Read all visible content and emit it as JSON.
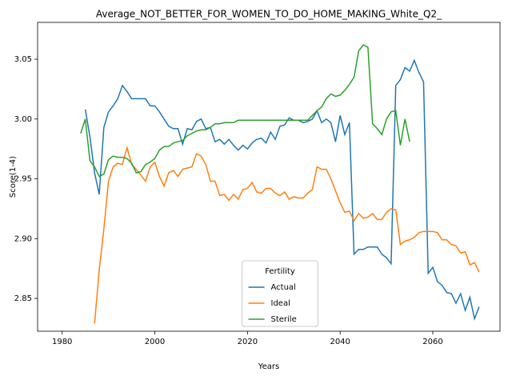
{
  "chart_data": {
    "type": "line",
    "title": "Average_NOT_BETTER_FOR_WOMEN_TO_DO_HOME_MAKING_White_Q2_",
    "x_label": "Years",
    "y_label": "Score(1-4)",
    "legend_title": "Fertility",
    "legend": "lower center",
    "grid": false,
    "xlim": [
      1974.7,
      2074.5
    ],
    "ylim": [
      2.8226,
      3.0808
    ],
    "xticks": [
      1980,
      2000,
      2020,
      2040,
      2060
    ],
    "yticks": [
      2.85,
      {
        "value": 2.9,
        "label": "2.90"
      },
      2.95,
      {
        "value": 3,
        "label": "3.00"
      },
      3.05
    ],
    "x": [
      1984,
      1985,
      1986,
      1987,
      1988,
      1989,
      1990,
      1991,
      1992,
      1993,
      1994,
      1995,
      1996,
      1997,
      1998,
      1999,
      2000,
      2001,
      2002,
      2003,
      2004,
      2005,
      2006,
      2007,
      2008,
      2009,
      2010,
      2011,
      2012,
      2013,
      2014,
      2015,
      2016,
      2017,
      2018,
      2019,
      2020,
      2021,
      2022,
      2023,
      2024,
      2025,
      2026,
      2027,
      2028,
      2029,
      2030,
      2031,
      2032,
      2033,
      2034,
      2035,
      2036,
      2037,
      2038,
      2039,
      2040,
      2041,
      2042,
      2043,
      2044,
      2045,
      2046,
      2047,
      2048,
      2049,
      2050,
      2051,
      2052,
      2053,
      2054,
      2055,
      2056,
      2057,
      2058,
      2059,
      2060,
      2061,
      2062,
      2063,
      2064,
      2065,
      2066,
      2067,
      2068,
      2069,
      2070
    ],
    "series": [
      {
        "name": "Actual",
        "color": "#1f77b4",
        "values": [
          null,
          3.008,
          2.985,
          2.955,
          2.937,
          2.993,
          3.006,
          3.011,
          3.017,
          3.028,
          3.023,
          3.017,
          3.017,
          3.017,
          3.017,
          3.011,
          3.011,
          3.006,
          3.0,
          2.994,
          2.992,
          2.992,
          2.979,
          2.992,
          2.991,
          2.998,
          3.0,
          2.992,
          2.993,
          2.981,
          2.983,
          2.979,
          2.983,
          2.978,
          2.974,
          2.978,
          2.975,
          2.98,
          2.983,
          2.984,
          2.98,
          2.989,
          2.983,
          2.994,
          2.995,
          3.001,
          2.999,
          2.999,
          2.997,
          2.998,
          3.0,
          3.007,
          2.997,
          3.0,
          2.997,
          2.981,
          3.003,
          2.987,
          2.997,
          2.887,
          2.891,
          2.891,
          2.893,
          2.893,
          2.893,
          2.887,
          2.884,
          2.879,
          3.028,
          3.033,
          3.043,
          3.04,
          3.049,
          3.039,
          3.031,
          2.871,
          2.876,
          2.864,
          2.861,
          2.855,
          2.854,
          2.846,
          2.854,
          2.84,
          2.851,
          2.833,
          2.843
        ]
      },
      {
        "name": "Ideal",
        "color": "#ff7f0e",
        "values": [
          null,
          null,
          null,
          2.829,
          2.874,
          2.908,
          2.948,
          2.96,
          2.963,
          2.962,
          2.976,
          2.962,
          2.958,
          2.953,
          2.948,
          2.96,
          2.964,
          2.952,
          2.944,
          2.955,
          2.957,
          2.952,
          2.958,
          2.959,
          2.96,
          2.971,
          2.969,
          2.962,
          2.948,
          2.948,
          2.936,
          2.937,
          2.932,
          2.937,
          2.933,
          2.941,
          2.942,
          2.947,
          2.939,
          2.938,
          2.942,
          2.942,
          2.938,
          2.936,
          2.939,
          2.933,
          2.935,
          2.934,
          2.934,
          2.938,
          2.941,
          2.96,
          2.958,
          2.958,
          2.95,
          2.94,
          2.93,
          2.922,
          2.923,
          2.915,
          2.921,
          2.917,
          2.918,
          2.921,
          2.916,
          2.916,
          2.922,
          2.925,
          2.924,
          2.895,
          2.898,
          2.899,
          2.901,
          2.905,
          2.906,
          2.906,
          2.906,
          2.905,
          2.899,
          2.899,
          2.895,
          2.894,
          2.888,
          2.889,
          2.878,
          2.88,
          2.872
        ]
      },
      {
        "name": "Sterile",
        "color": "#2ca02c",
        "values": [
          2.988,
          3.0,
          2.965,
          2.96,
          2.952,
          2.954,
          2.966,
          2.969,
          2.968,
          2.968,
          2.967,
          2.963,
          2.955,
          2.956,
          2.962,
          2.964,
          2.967,
          2.974,
          2.977,
          2.977,
          2.98,
          2.981,
          2.982,
          2.986,
          2.988,
          2.99,
          2.991,
          2.991,
          2.993,
          2.996,
          2.996,
          2.997,
          2.997,
          2.997,
          2.999,
          2.999,
          2.999,
          2.999,
          2.999,
          2.999,
          2.999,
          2.999,
          2.999,
          2.999,
          2.999,
          2.999,
          2.999,
          2.999,
          2.999,
          2.999,
          3.003,
          3.007,
          3.01,
          3.017,
          3.021,
          3.019,
          3.02,
          3.024,
          3.029,
          3.035,
          3.057,
          3.062,
          3.06,
          2.996,
          2.992,
          2.987,
          3.0,
          3.006,
          3.007,
          2.978,
          3.0,
          2.981,
          null,
          null,
          null,
          null,
          null,
          null,
          null,
          null,
          null,
          null,
          null,
          null,
          null,
          null,
          null
        ]
      }
    ]
  }
}
